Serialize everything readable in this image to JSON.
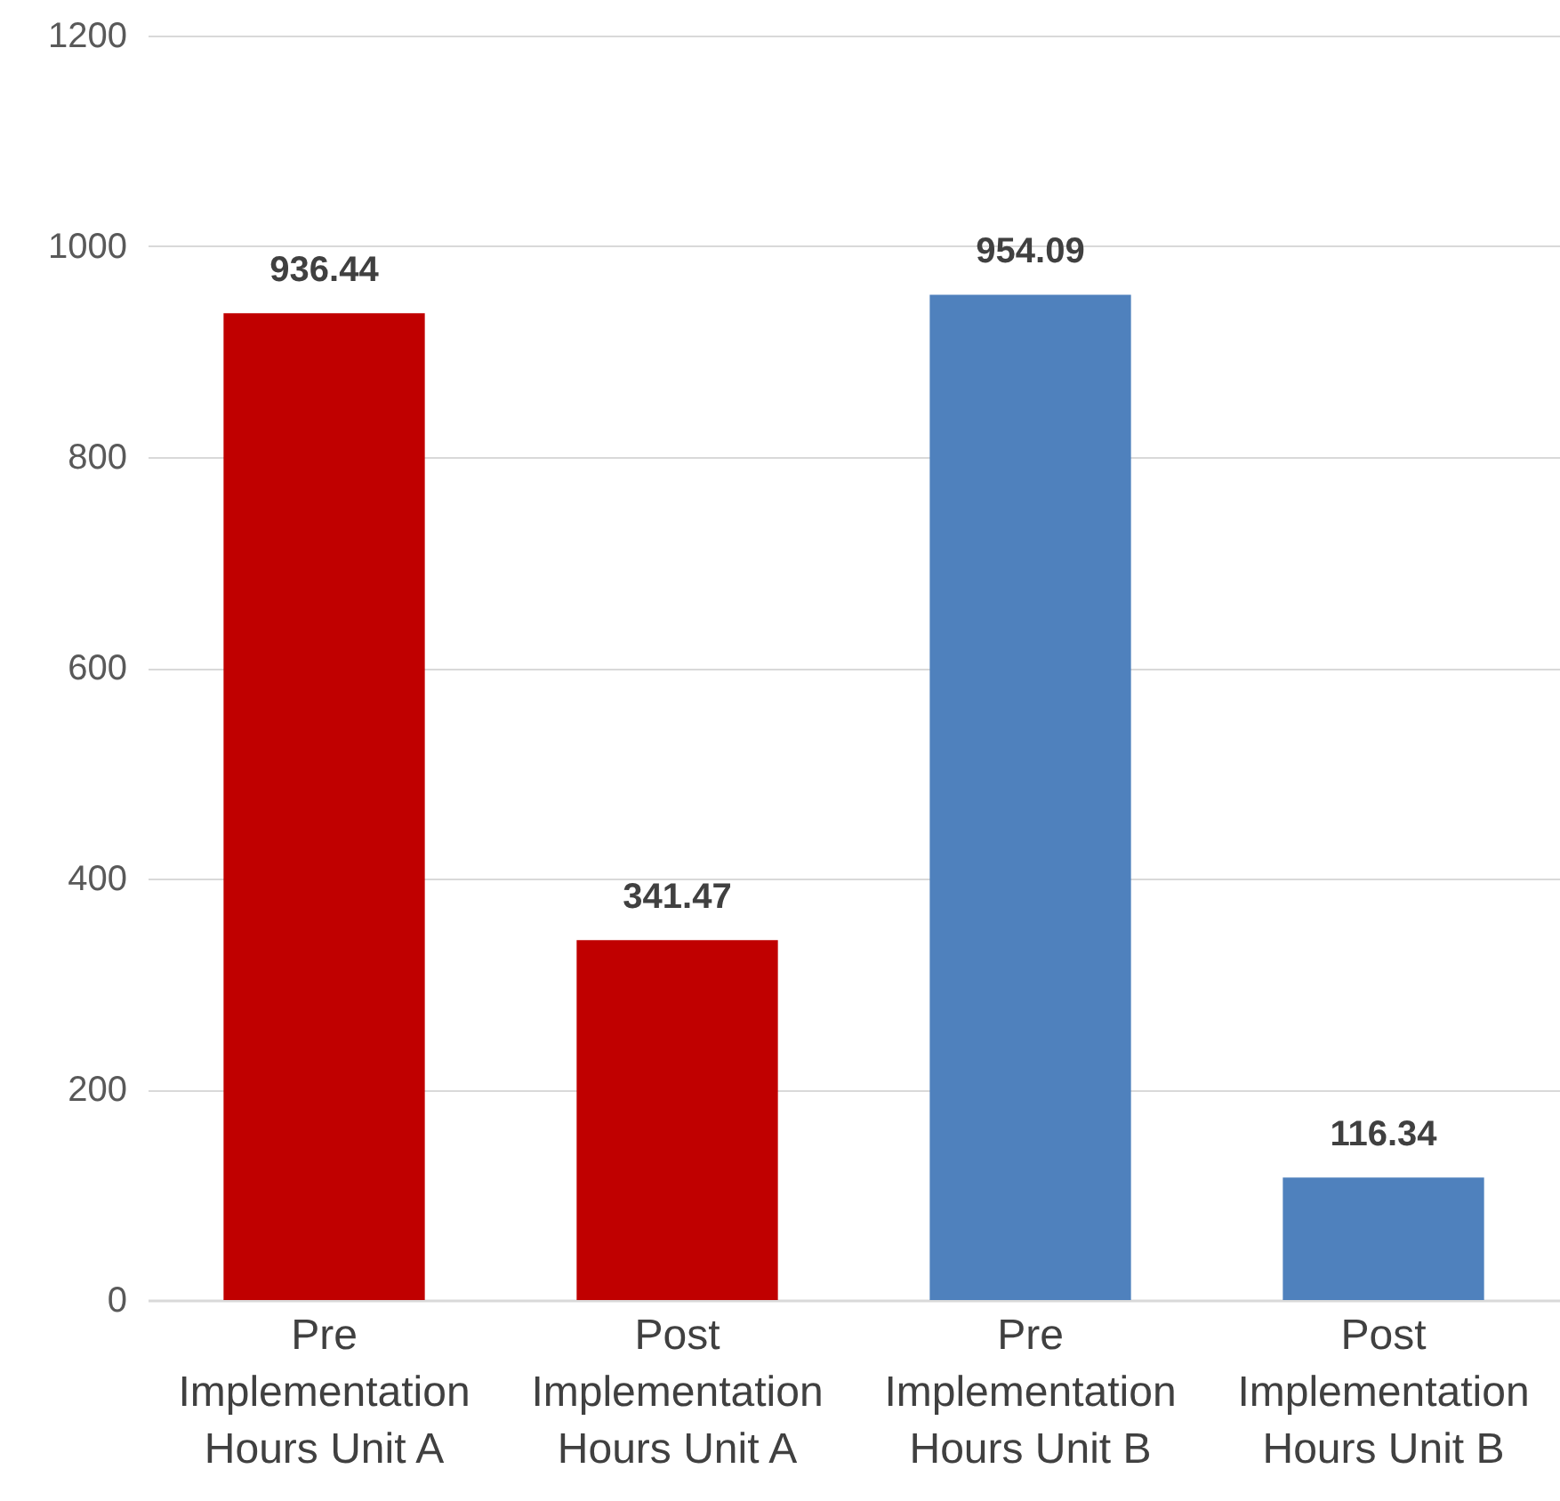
{
  "chart_data": {
    "type": "bar",
    "categories": [
      "Pre Implementation Hours Unit A",
      "Post Implementation Hours Unit A",
      "Pre Implementation Hours Unit B",
      "Post Implementation Hours Unit B"
    ],
    "values": [
      936.44,
      341.47,
      954.09,
      116.34
    ],
    "colors": [
      "#c00000",
      "#c00000",
      "#4f81bd",
      "#4f81bd"
    ],
    "ylim": [
      0,
      1200
    ],
    "yticks": [
      0,
      200,
      400,
      600,
      800,
      1000,
      1200
    ],
    "grid": "y",
    "data_labels": true
  }
}
